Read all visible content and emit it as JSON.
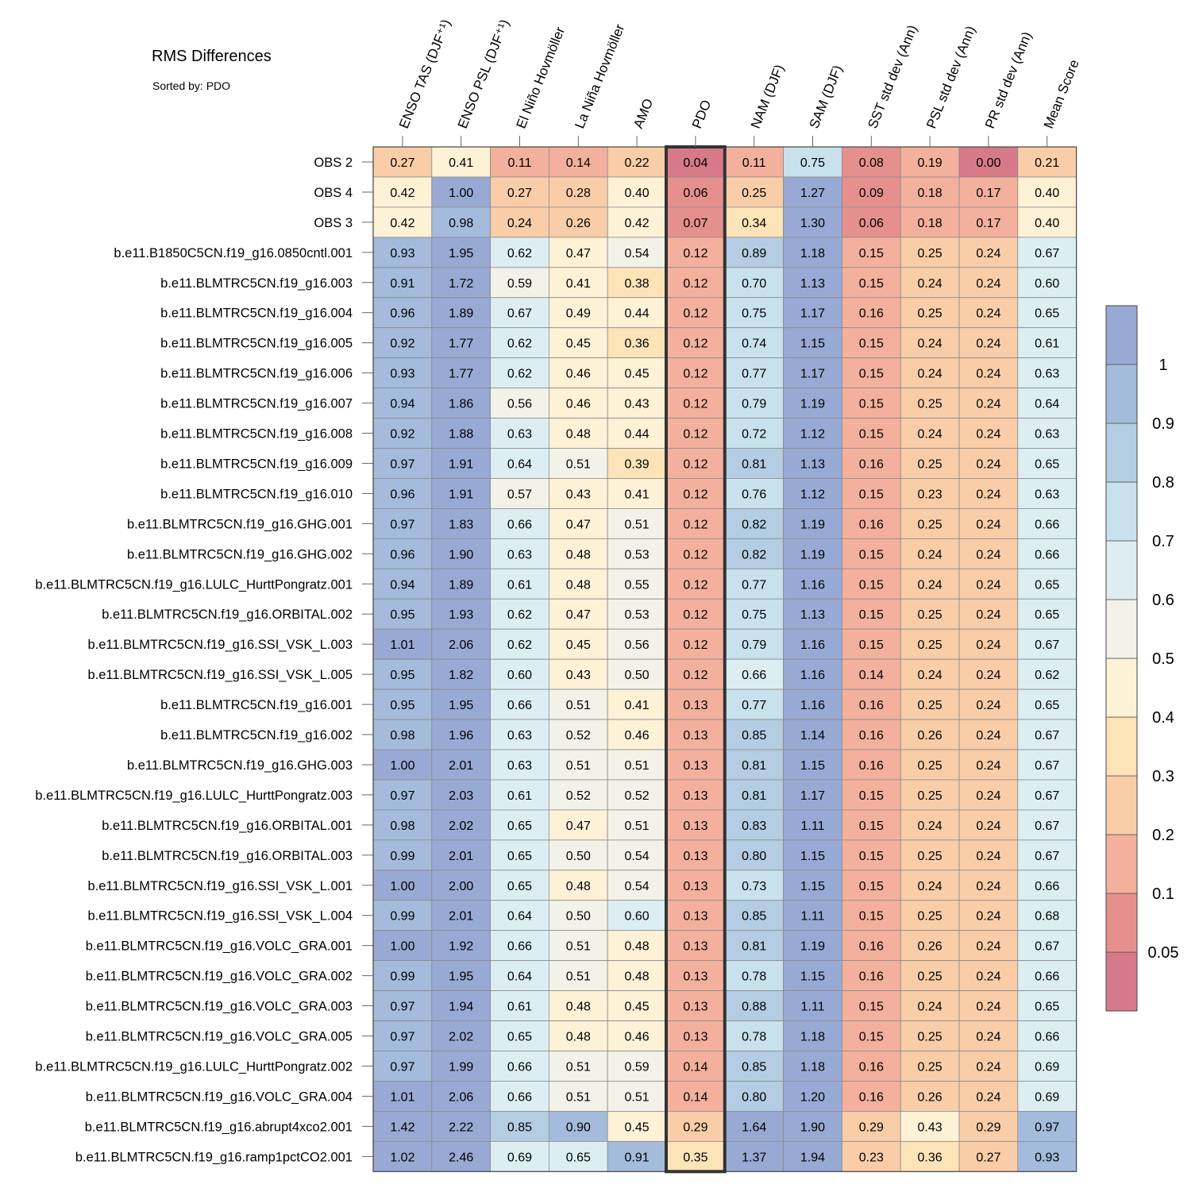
{
  "chart_data": {
    "type": "heatmap",
    "title": "RMS Differences",
    "subtitle": "Sorted by: PDO",
    "sorted_by_column": "PDO",
    "columns": [
      "ENSO TAS (DJF⁺¹)",
      "ENSO PSL (DJF⁺¹)",
      "El Niño Hovmöller",
      "La Niña Hovmöller",
      "AMO",
      "PDO",
      "NAM (DJF)",
      "SAM (DJF)",
      "SST std dev (Ann)",
      "PSL std dev (Ann)",
      "PR std dev (Ann)",
      "Mean Score"
    ],
    "rows": [
      {
        "label": "OBS 2",
        "values": [
          "0.27",
          "0.41",
          "0.11",
          "0.14",
          "0.22",
          "0.04",
          "0.11",
          "0.75",
          "0.08",
          "0.19",
          "0.00",
          "0.21"
        ]
      },
      {
        "label": "OBS 4",
        "values": [
          "0.42",
          "1.00",
          "0.27",
          "0.28",
          "0.40",
          "0.06",
          "0.25",
          "1.27",
          "0.09",
          "0.18",
          "0.17",
          "0.40"
        ]
      },
      {
        "label": "OBS 3",
        "values": [
          "0.42",
          "0.98",
          "0.24",
          "0.26",
          "0.42",
          "0.07",
          "0.34",
          "1.30",
          "0.06",
          "0.18",
          "0.17",
          "0.40"
        ]
      },
      {
        "label": "b.e11.B1850C5CN.f19_g16.0850cntl.001",
        "values": [
          "0.93",
          "1.95",
          "0.62",
          "0.47",
          "0.54",
          "0.12",
          "0.89",
          "1.18",
          "0.15",
          "0.25",
          "0.24",
          "0.67"
        ]
      },
      {
        "label": "b.e11.BLMTRC5CN.f19_g16.003",
        "values": [
          "0.91",
          "1.72",
          "0.59",
          "0.41",
          "0.38",
          "0.12",
          "0.70",
          "1.13",
          "0.15",
          "0.24",
          "0.24",
          "0.60"
        ]
      },
      {
        "label": "b.e11.BLMTRC5CN.f19_g16.004",
        "values": [
          "0.96",
          "1.89",
          "0.67",
          "0.49",
          "0.44",
          "0.12",
          "0.75",
          "1.17",
          "0.16",
          "0.25",
          "0.24",
          "0.65"
        ]
      },
      {
        "label": "b.e11.BLMTRC5CN.f19_g16.005",
        "values": [
          "0.92",
          "1.77",
          "0.62",
          "0.45",
          "0.36",
          "0.12",
          "0.74",
          "1.15",
          "0.15",
          "0.24",
          "0.24",
          "0.61"
        ]
      },
      {
        "label": "b.e11.BLMTRC5CN.f19_g16.006",
        "values": [
          "0.93",
          "1.77",
          "0.62",
          "0.46",
          "0.45",
          "0.12",
          "0.77",
          "1.17",
          "0.15",
          "0.24",
          "0.24",
          "0.63"
        ]
      },
      {
        "label": "b.e11.BLMTRC5CN.f19_g16.007",
        "values": [
          "0.94",
          "1.86",
          "0.56",
          "0.46",
          "0.43",
          "0.12",
          "0.79",
          "1.19",
          "0.15",
          "0.25",
          "0.24",
          "0.64"
        ]
      },
      {
        "label": "b.e11.BLMTRC5CN.f19_g16.008",
        "values": [
          "0.92",
          "1.88",
          "0.63",
          "0.48",
          "0.44",
          "0.12",
          "0.72",
          "1.12",
          "0.15",
          "0.24",
          "0.24",
          "0.63"
        ]
      },
      {
        "label": "b.e11.BLMTRC5CN.f19_g16.009",
        "values": [
          "0.97",
          "1.91",
          "0.64",
          "0.51",
          "0.39",
          "0.12",
          "0.81",
          "1.13",
          "0.16",
          "0.25",
          "0.24",
          "0.65"
        ]
      },
      {
        "label": "b.e11.BLMTRC5CN.f19_g16.010",
        "values": [
          "0.96",
          "1.91",
          "0.57",
          "0.43",
          "0.41",
          "0.12",
          "0.76",
          "1.12",
          "0.15",
          "0.23",
          "0.24",
          "0.63"
        ]
      },
      {
        "label": "b.e11.BLMTRC5CN.f19_g16.GHG.001",
        "values": [
          "0.97",
          "1.83",
          "0.66",
          "0.47",
          "0.51",
          "0.12",
          "0.82",
          "1.19",
          "0.16",
          "0.25",
          "0.24",
          "0.66"
        ]
      },
      {
        "label": "b.e11.BLMTRC5CN.f19_g16.GHG.002",
        "values": [
          "0.96",
          "1.90",
          "0.63",
          "0.48",
          "0.53",
          "0.12",
          "0.82",
          "1.19",
          "0.15",
          "0.24",
          "0.24",
          "0.66"
        ]
      },
      {
        "label": "b.e11.BLMTRC5CN.f19_g16.LULC_HurttPongratz.001",
        "values": [
          "0.94",
          "1.89",
          "0.61",
          "0.48",
          "0.55",
          "0.12",
          "0.77",
          "1.16",
          "0.15",
          "0.24",
          "0.24",
          "0.65"
        ]
      },
      {
        "label": "b.e11.BLMTRC5CN.f19_g16.ORBITAL.002",
        "values": [
          "0.95",
          "1.93",
          "0.62",
          "0.47",
          "0.53",
          "0.12",
          "0.75",
          "1.13",
          "0.15",
          "0.25",
          "0.24",
          "0.65"
        ]
      },
      {
        "label": "b.e11.BLMTRC5CN.f19_g16.SSI_VSK_L.003",
        "values": [
          "1.01",
          "2.06",
          "0.62",
          "0.45",
          "0.56",
          "0.12",
          "0.79",
          "1.16",
          "0.15",
          "0.25",
          "0.24",
          "0.67"
        ]
      },
      {
        "label": "b.e11.BLMTRC5CN.f19_g16.SSI_VSK_L.005",
        "values": [
          "0.95",
          "1.82",
          "0.60",
          "0.43",
          "0.50",
          "0.12",
          "0.66",
          "1.16",
          "0.14",
          "0.24",
          "0.24",
          "0.62"
        ]
      },
      {
        "label": "b.e11.BLMTRC5CN.f19_g16.001",
        "values": [
          "0.95",
          "1.95",
          "0.66",
          "0.51",
          "0.41",
          "0.13",
          "0.77",
          "1.16",
          "0.16",
          "0.25",
          "0.24",
          "0.65"
        ]
      },
      {
        "label": "b.e11.BLMTRC5CN.f19_g16.002",
        "values": [
          "0.98",
          "1.96",
          "0.63",
          "0.52",
          "0.46",
          "0.13",
          "0.85",
          "1.14",
          "0.16",
          "0.26",
          "0.24",
          "0.67"
        ]
      },
      {
        "label": "b.e11.BLMTRC5CN.f19_g16.GHG.003",
        "values": [
          "1.00",
          "2.01",
          "0.63",
          "0.51",
          "0.51",
          "0.13",
          "0.81",
          "1.15",
          "0.16",
          "0.25",
          "0.24",
          "0.67"
        ]
      },
      {
        "label": "b.e11.BLMTRC5CN.f19_g16.LULC_HurttPongratz.003",
        "values": [
          "0.97",
          "2.03",
          "0.61",
          "0.52",
          "0.52",
          "0.13",
          "0.81",
          "1.17",
          "0.15",
          "0.25",
          "0.24",
          "0.67"
        ]
      },
      {
        "label": "b.e11.BLMTRC5CN.f19_g16.ORBITAL.001",
        "values": [
          "0.98",
          "2.02",
          "0.65",
          "0.47",
          "0.51",
          "0.13",
          "0.83",
          "1.11",
          "0.15",
          "0.24",
          "0.24",
          "0.67"
        ]
      },
      {
        "label": "b.e11.BLMTRC5CN.f19_g16.ORBITAL.003",
        "values": [
          "0.99",
          "2.01",
          "0.65",
          "0.50",
          "0.54",
          "0.13",
          "0.80",
          "1.15",
          "0.15",
          "0.25",
          "0.24",
          "0.67"
        ]
      },
      {
        "label": "b.e11.BLMTRC5CN.f19_g16.SSI_VSK_L.001",
        "values": [
          "1.00",
          "2.00",
          "0.65",
          "0.48",
          "0.54",
          "0.13",
          "0.73",
          "1.15",
          "0.15",
          "0.24",
          "0.24",
          "0.66"
        ]
      },
      {
        "label": "b.e11.BLMTRC5CN.f19_g16.SSI_VSK_L.004",
        "values": [
          "0.99",
          "2.01",
          "0.64",
          "0.50",
          "0.60",
          "0.13",
          "0.85",
          "1.11",
          "0.15",
          "0.25",
          "0.24",
          "0.68"
        ]
      },
      {
        "label": "b.e11.BLMTRC5CN.f19_g16.VOLC_GRA.001",
        "values": [
          "1.00",
          "1.92",
          "0.66",
          "0.51",
          "0.48",
          "0.13",
          "0.81",
          "1.19",
          "0.16",
          "0.26",
          "0.24",
          "0.67"
        ]
      },
      {
        "label": "b.e11.BLMTRC5CN.f19_g16.VOLC_GRA.002",
        "values": [
          "0.99",
          "1.95",
          "0.64",
          "0.51",
          "0.48",
          "0.13",
          "0.78",
          "1.15",
          "0.16",
          "0.25",
          "0.24",
          "0.66"
        ]
      },
      {
        "label": "b.e11.BLMTRC5CN.f19_g16.VOLC_GRA.003",
        "values": [
          "0.97",
          "1.94",
          "0.61",
          "0.48",
          "0.45",
          "0.13",
          "0.88",
          "1.11",
          "0.15",
          "0.24",
          "0.24",
          "0.65"
        ]
      },
      {
        "label": "b.e11.BLMTRC5CN.f19_g16.VOLC_GRA.005",
        "values": [
          "0.97",
          "2.02",
          "0.65",
          "0.48",
          "0.46",
          "0.13",
          "0.78",
          "1.18",
          "0.15",
          "0.25",
          "0.24",
          "0.66"
        ]
      },
      {
        "label": "b.e11.BLMTRC5CN.f19_g16.LULC_HurttPongratz.002",
        "values": [
          "0.97",
          "1.99",
          "0.66",
          "0.51",
          "0.59",
          "0.14",
          "0.85",
          "1.18",
          "0.16",
          "0.25",
          "0.24",
          "0.69"
        ]
      },
      {
        "label": "b.e11.BLMTRC5CN.f19_g16.VOLC_GRA.004",
        "values": [
          "1.01",
          "2.06",
          "0.66",
          "0.51",
          "0.51",
          "0.14",
          "0.80",
          "1.20",
          "0.16",
          "0.26",
          "0.24",
          "0.69"
        ]
      },
      {
        "label": "b.e11.BLMTRC5CN.f19_g16.abrupt4xco2.001",
        "values": [
          "1.42",
          "2.22",
          "0.85",
          "0.90",
          "0.45",
          "0.29",
          "1.64",
          "1.90",
          "0.29",
          "0.43",
          "0.29",
          "0.97"
        ]
      },
      {
        "label": "b.e11.BLMTRC5CN.f19_g16.ramp1pctCO2.001",
        "values": [
          "1.02",
          "2.46",
          "0.69",
          "0.65",
          "0.91",
          "0.35",
          "1.37",
          "1.94",
          "0.23",
          "0.36",
          "0.27",
          "0.93"
        ]
      }
    ],
    "colorbar": {
      "labels": [
        "1",
        "0.9",
        "0.8",
        "0.7",
        "0.6",
        "0.5",
        "0.4",
        "0.3",
        "0.2",
        "0.1",
        "0.05"
      ],
      "thresholds": [
        0.05,
        0.1,
        0.2,
        0.3,
        0.4,
        0.5,
        0.6,
        0.7,
        0.8,
        0.9,
        1
      ],
      "colors_low_to_high": [
        "#d67a8a",
        "#e6908e",
        "#f3b09c",
        "#f9cda8",
        "#fde3b8",
        "#fdf1d6",
        "#f2f2e9",
        "#ddeef3",
        "#c8e1ed",
        "#b4cde2",
        "#a4bbdb",
        "#98a9d4"
      ]
    }
  }
}
